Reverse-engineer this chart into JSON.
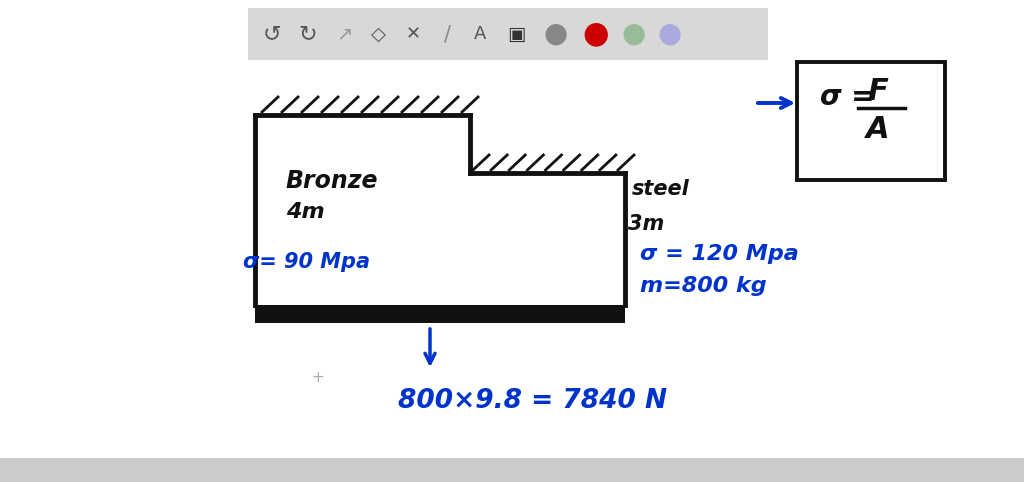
{
  "fig_width": 10.24,
  "fig_height": 4.82,
  "bg_color": "#ffffff",
  "toolbar_bg": "#d8d8d8",
  "bronze_label": "Bronze",
  "bronze_length": "4m",
  "bronze_sigma": "σ= 90 Mpa",
  "steel_label": "steel",
  "steel_length": "3m",
  "steel_sigma": "σ = 120 Mpa",
  "steel_mass": "m=800 kg",
  "formula_sigma": "σ =",
  "formula_F": "F",
  "formula_A": "A",
  "calc_text": "800×9.8 = 7840 N",
  "blue_color": "#0033cc",
  "black_color": "#111111"
}
